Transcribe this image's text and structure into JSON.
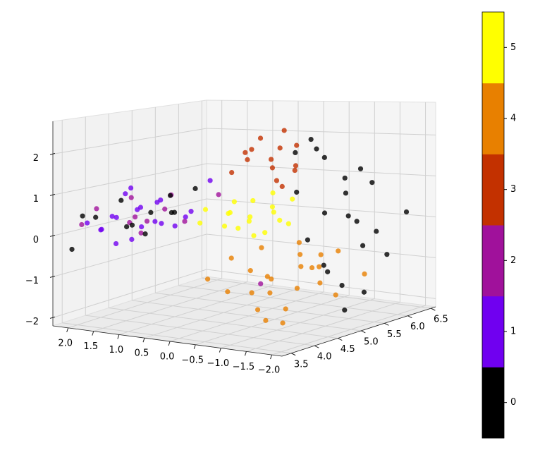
{
  "chart_data": {
    "type": "scatter3d",
    "x": [
      3.9,
      4.0,
      4.2,
      3.8,
      4.1,
      4.3,
      3.7,
      4.0,
      4.4,
      3.9,
      4.2,
      4.5,
      3.6,
      4.1,
      4.3,
      4.6,
      3.8,
      4.0,
      4.4,
      3.9,
      3.8,
      4.1,
      4.3,
      3.7,
      4.2,
      4.5,
      3.9,
      4.0,
      4.6,
      4.7,
      4.4,
      5.0,
      3.9,
      4.2,
      4.0,
      3.6,
      4.4,
      4.3,
      3.8,
      4.1,
      3.5,
      4.5,
      4.0,
      4.6,
      6.0,
      6.2,
      5.8,
      6.3,
      5.9,
      6.1,
      5.6,
      6.4,
      5.7,
      6.0,
      6.2,
      5.5,
      5.8,
      6.3,
      5.4,
      6.1,
      5.9,
      5.3,
      6.4,
      5.6,
      6.0,
      5.2,
      5.0,
      5.2,
      4.8,
      5.3,
      4.9,
      5.1,
      5.4,
      4.7,
      5.0,
      5.2,
      4.6,
      5.5,
      4.9,
      5.3,
      4.8,
      5.1,
      5.6,
      4.5,
      4.6,
      4.8,
      4.4,
      5.0,
      4.5,
      4.9,
      4.3,
      5.1,
      4.7,
      4.2,
      5.2,
      4.6,
      4.4,
      5.0,
      4.1,
      4.8,
      5.3,
      4.5,
      4.0,
      4.9,
      5.4,
      4.3,
      5.6,
      4.7,
      5.8,
      5.6,
      6.0,
      5.5,
      5.9,
      5.7,
      6.1,
      5.4,
      5.8,
      6.2,
      5.5,
      5.9,
      6.3,
      5.6
    ],
    "y": [
      1.6,
      1.2,
      1.4,
      1.8,
      0.9,
      1.1,
      1.5,
      2.0,
      0.7,
      1.3,
      1.7,
      1.0,
      1.9,
      1.5,
      0.5,
      0.4,
      1.1,
      1.7,
      1.3,
      0.8,
      1.9,
      1.3,
      1.6,
      2.1,
      0.8,
      1.2,
      1.0,
      1.4,
      0.9,
      -0.5,
      1.8,
      0.6,
      1.4,
      1.2,
      1.6,
      2.2,
      1.0,
      1.4,
      1.2,
      0.7,
      1.9,
      0.6,
      2.1,
      1.1,
      -1.2,
      -0.8,
      -1.5,
      -1.0,
      -0.5,
      -1.7,
      -1.4,
      -0.6,
      -0.9,
      -0.3,
      -1.4,
      -1.8,
      -0.2,
      -1.9,
      -1.1,
      0.1,
      -1.0,
      -1.6,
      -0.2,
      -0.6,
      -1.5,
      -1.3,
      0.0,
      -0.3,
      0.3,
      0.2,
      -0.4,
      0.5,
      -0.1,
      0.1,
      -0.6,
      0.4,
      0.6,
      0.0,
      0.2,
      -0.5,
      -0.2,
      0.0,
      -0.3,
      0.4,
      -0.8,
      -1.2,
      -0.6,
      -1.0,
      -1.4,
      -0.5,
      -1.0,
      -1.3,
      -0.3,
      -0.9,
      -0.8,
      -1.6,
      -0.2,
      -1.7,
      -0.4,
      -0.9,
      -1.1,
      -0.7,
      -0.1,
      -1.5,
      -1.9,
      -1.3,
      -1.2,
      -0.6,
      0.3,
      0.5,
      0.0,
      0.8,
      0.6,
      0.1,
      0.4,
      0.4,
      -0.2,
      0.2,
      0.0,
      0.9,
      0.5,
      -0.1
    ],
    "z": [
      0.4,
      0.2,
      0.6,
      0.1,
      0.3,
      0.8,
      0.5,
      0.0,
      0.4,
      -0.1,
      0.9,
      0.1,
      0.3,
      1.1,
      0.6,
      1.3,
      0.7,
      -0.3,
      0.2,
      0.9,
      0.6,
      0.0,
      0.3,
      0.2,
      1.0,
      0.5,
      0.4,
      0.9,
      0.2,
      -1.2,
      0.1,
      0.8,
      0.2,
      0.5,
      0.8,
      -0.4,
      0.9,
      -0.1,
      0.3,
      0.6,
      0.5,
      1.1,
      0.3,
      0.4,
      0.0,
      0.6,
      -0.5,
      1.2,
      1.8,
      -0.8,
      0.3,
      0.9,
      -1.2,
      2.0,
      -0.3,
      -1.5,
      0.7,
      0.2,
      -0.9,
      1.6,
      -1.6,
      -1.9,
      1.4,
      -0.4,
      1.0,
      0.5,
      0.2,
      0.4,
      0.1,
      0.6,
      0.0,
      0.3,
      0.8,
      0.5,
      0.3,
      -0.1,
      0.2,
      0.4,
      0.7,
      0.1,
      0.4,
      -0.2,
      0.6,
      0.6,
      -1.0,
      -0.7,
      -1.3,
      -0.5,
      -1.1,
      -1.5,
      -0.8,
      -1.2,
      -0.9,
      -1.6,
      -0.3,
      -0.6,
      -0.5,
      -1.4,
      -1.2,
      -1.8,
      -0.9,
      -0.2,
      -0.9,
      -0.4,
      -1.0,
      -1.9,
      -0.6,
      -2.1,
      1.5,
      1.8,
      1.3,
      1.2,
      2.0,
      1.0,
      1.7,
      1.6,
      1.9,
      1.1,
      1.4,
      1.6,
      2.1,
      0.9
    ],
    "values": [
      1,
      1,
      1,
      1,
      1,
      1,
      1,
      1,
      1,
      1,
      1,
      1,
      1,
      1,
      1,
      1,
      1,
      1,
      1,
      1,
      2,
      2,
      2,
      2,
      2,
      2,
      2,
      2,
      2,
      2,
      2,
      2,
      0,
      0,
      0,
      0,
      0,
      0,
      0,
      0,
      0,
      0,
      0,
      0,
      0,
      0,
      0,
      0,
      0,
      0,
      0,
      0,
      0,
      0,
      0,
      0,
      0,
      0,
      0,
      0,
      0,
      0,
      0,
      0,
      0,
      0,
      5,
      5,
      5,
      5,
      5,
      5,
      5,
      5,
      5,
      5,
      5,
      5,
      5,
      5,
      5,
      5,
      5,
      5,
      4,
      4,
      4,
      4,
      4,
      4,
      4,
      4,
      4,
      4,
      4,
      4,
      4,
      4,
      4,
      4,
      4,
      4,
      4,
      4,
      4,
      4,
      4,
      4,
      3,
      3,
      3,
      3,
      3,
      3,
      3,
      3,
      3,
      3,
      3,
      3,
      3,
      3
    ],
    "xlim": [
      3.3,
      6.6
    ],
    "xticks": [
      3.5,
      {
        "value": 4.0,
        "label": "4.0"
      },
      4.5,
      {
        "value": 5.0,
        "label": "5.0"
      },
      5.5,
      {
        "value": 6.0,
        "label": "6.0"
      },
      6.5
    ],
    "ylim": [
      -2.2,
      2.3
    ],
    "yticks": [
      {
        "value": 2.0,
        "label": "2.0"
      },
      1.5,
      {
        "value": 1.0,
        "label": "1.0"
      },
      0.5,
      {
        "value": 0.0,
        "label": "0.0"
      },
      {
        "value": -0.5,
        "label": "−0.5"
      },
      {
        "value": -1.0,
        "label": "−1.0"
      },
      {
        "value": -1.5,
        "label": "−1.5"
      },
      {
        "value": -2.0,
        "label": "−2.0"
      }
    ],
    "zlim": [
      -2.2,
      2.8
    ],
    "zticks": [
      {
        "value": -2,
        "label": "−2"
      },
      {
        "value": -1,
        "label": "−1"
      },
      0,
      1,
      2
    ],
    "grid": true,
    "colorbar": {
      "colors": [
        "#000000",
        "#7000f0",
        "#a0119b",
        "#c33100",
        "#e88000",
        "#ffff00"
      ],
      "clim": [
        -0.5,
        5.5
      ],
      "ticks": [
        0,
        1,
        2,
        3,
        4,
        5
      ]
    }
  }
}
